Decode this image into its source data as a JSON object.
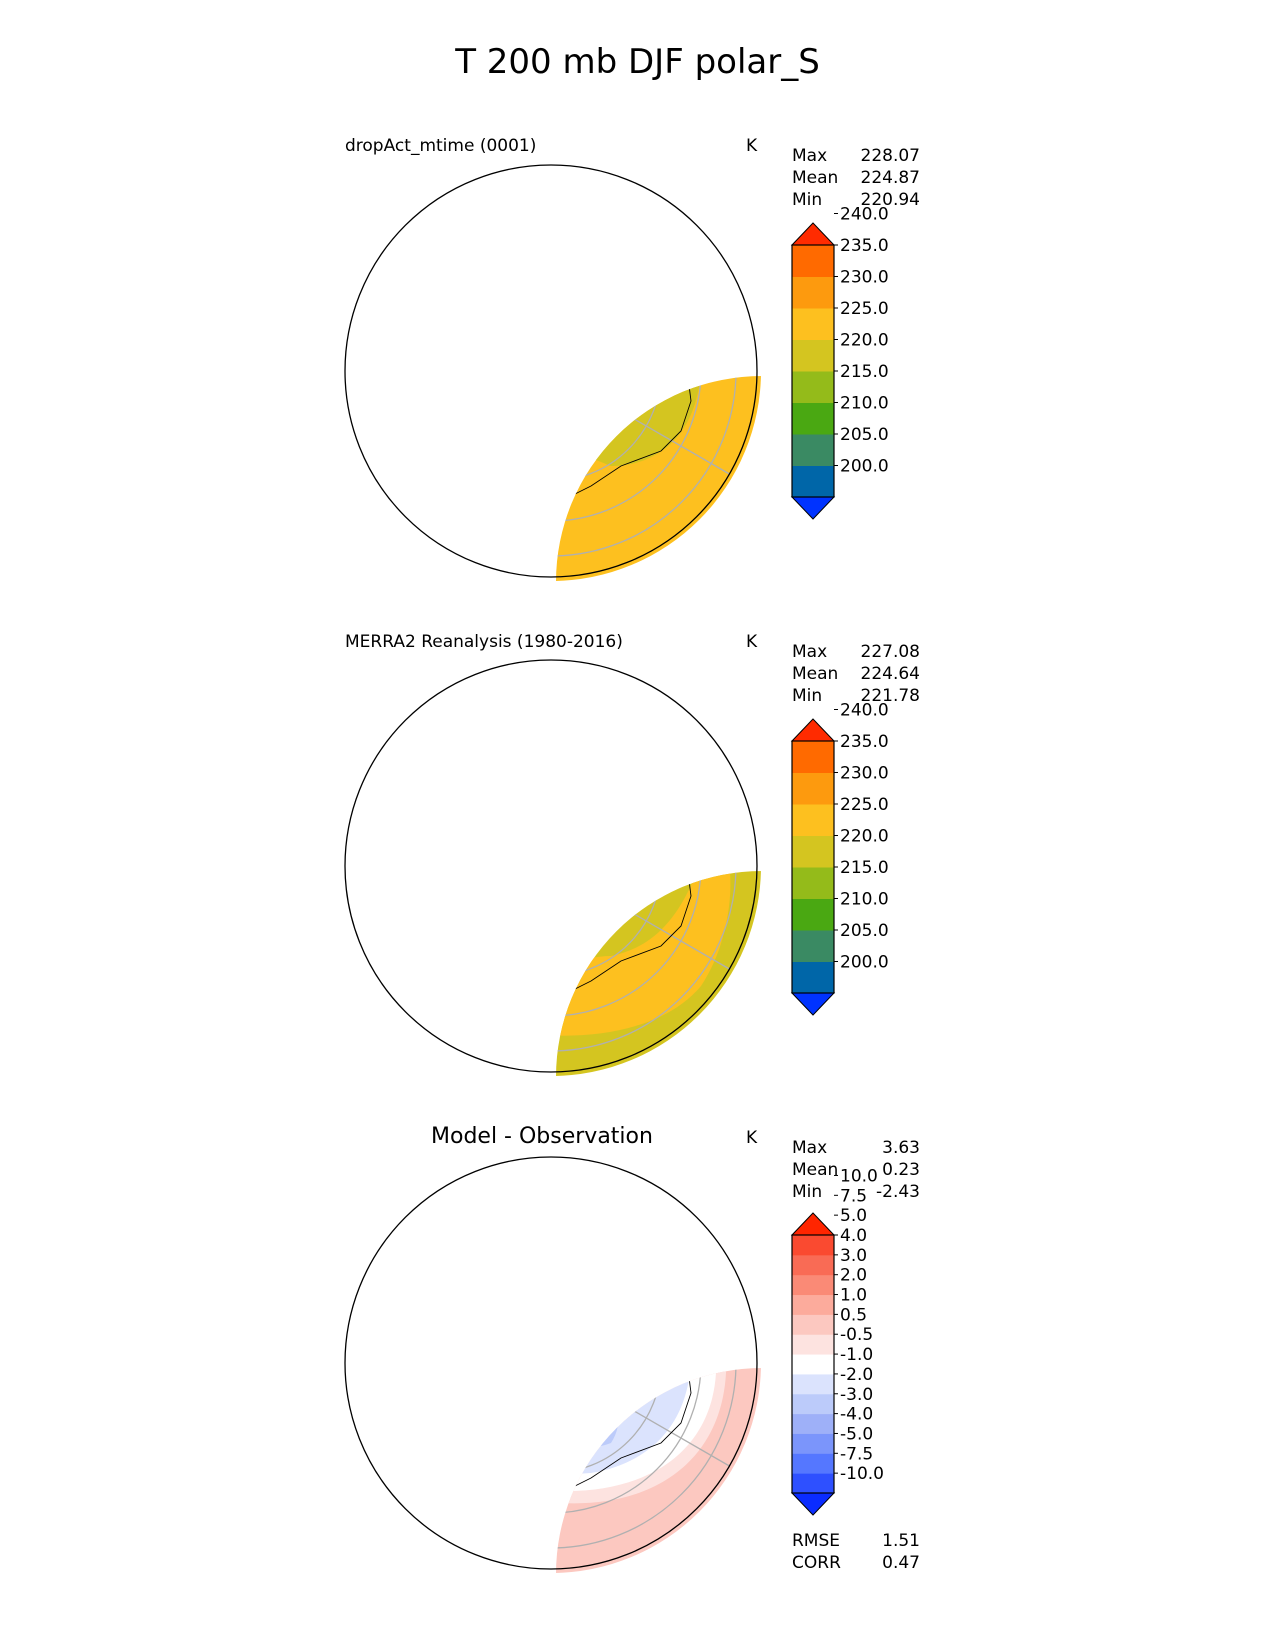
{
  "title": "T 200 mb DJF polar_S",
  "units": "K",
  "colors": {
    "abs_levels_colors": [
      "#0033ff",
      "#0066a8",
      "#3a8a63",
      "#4aa812",
      "#94bb1a",
      "#d4c520",
      "#fdc01f",
      "#fd9a0e",
      "#ff6a00",
      "#ff2b00"
    ],
    "diff_colors": [
      "#0a2cff",
      "#2e50ff",
      "#5577ff",
      "#7b95fb",
      "#9eb0f8",
      "#bccbfa",
      "#dbe3fd",
      "#ffffff",
      "#fde3e0",
      "#fcc8c0",
      "#fcab9c",
      "#fa8a76",
      "#f96b55",
      "#fa4a30",
      "#ff2500"
    ]
  },
  "panels": [
    {
      "title": "dropAct_mtime (0001)",
      "units": "K",
      "stats": [
        {
          "label": "Max",
          "value": "228.07"
        },
        {
          "label": "Mean",
          "value": "224.87"
        },
        {
          "label": "Min",
          "value": "220.94"
        }
      ],
      "colorbar_ticks": [
        "200.0",
        "205.0",
        "210.0",
        "215.0",
        "220.0",
        "225.0",
        "230.0",
        "235.0",
        "240.0"
      ]
    },
    {
      "title": "MERRA2 Reanalysis (1980-2016)",
      "units": "K",
      "stats": [
        {
          "label": "Max",
          "value": "227.08"
        },
        {
          "label": "Mean",
          "value": "224.64"
        },
        {
          "label": "Min",
          "value": "221.78"
        }
      ],
      "colorbar_ticks": [
        "200.0",
        "205.0",
        "210.0",
        "215.0",
        "220.0",
        "225.0",
        "230.0",
        "235.0",
        "240.0"
      ]
    },
    {
      "title": "Model - Observation",
      "units": "K",
      "stats": [
        {
          "label": "Max",
          "value": "3.63"
        },
        {
          "label": "Mean",
          "value": "0.23"
        },
        {
          "label": "Min",
          "value": "-2.43"
        }
      ],
      "colorbar_ticks": [
        "-10.0",
        "-7.5",
        "-5.0",
        "-4.0",
        "-3.0",
        "-2.0",
        "-1.0",
        "-0.5",
        "0.5",
        "1.0",
        "2.0",
        "3.0",
        "4.0",
        "5.0",
        "7.5",
        "10.0"
      ],
      "metrics": [
        {
          "label": "RMSE",
          "value": "1.51"
        },
        {
          "label": "CORR",
          "value": "0.47"
        }
      ]
    }
  ]
}
